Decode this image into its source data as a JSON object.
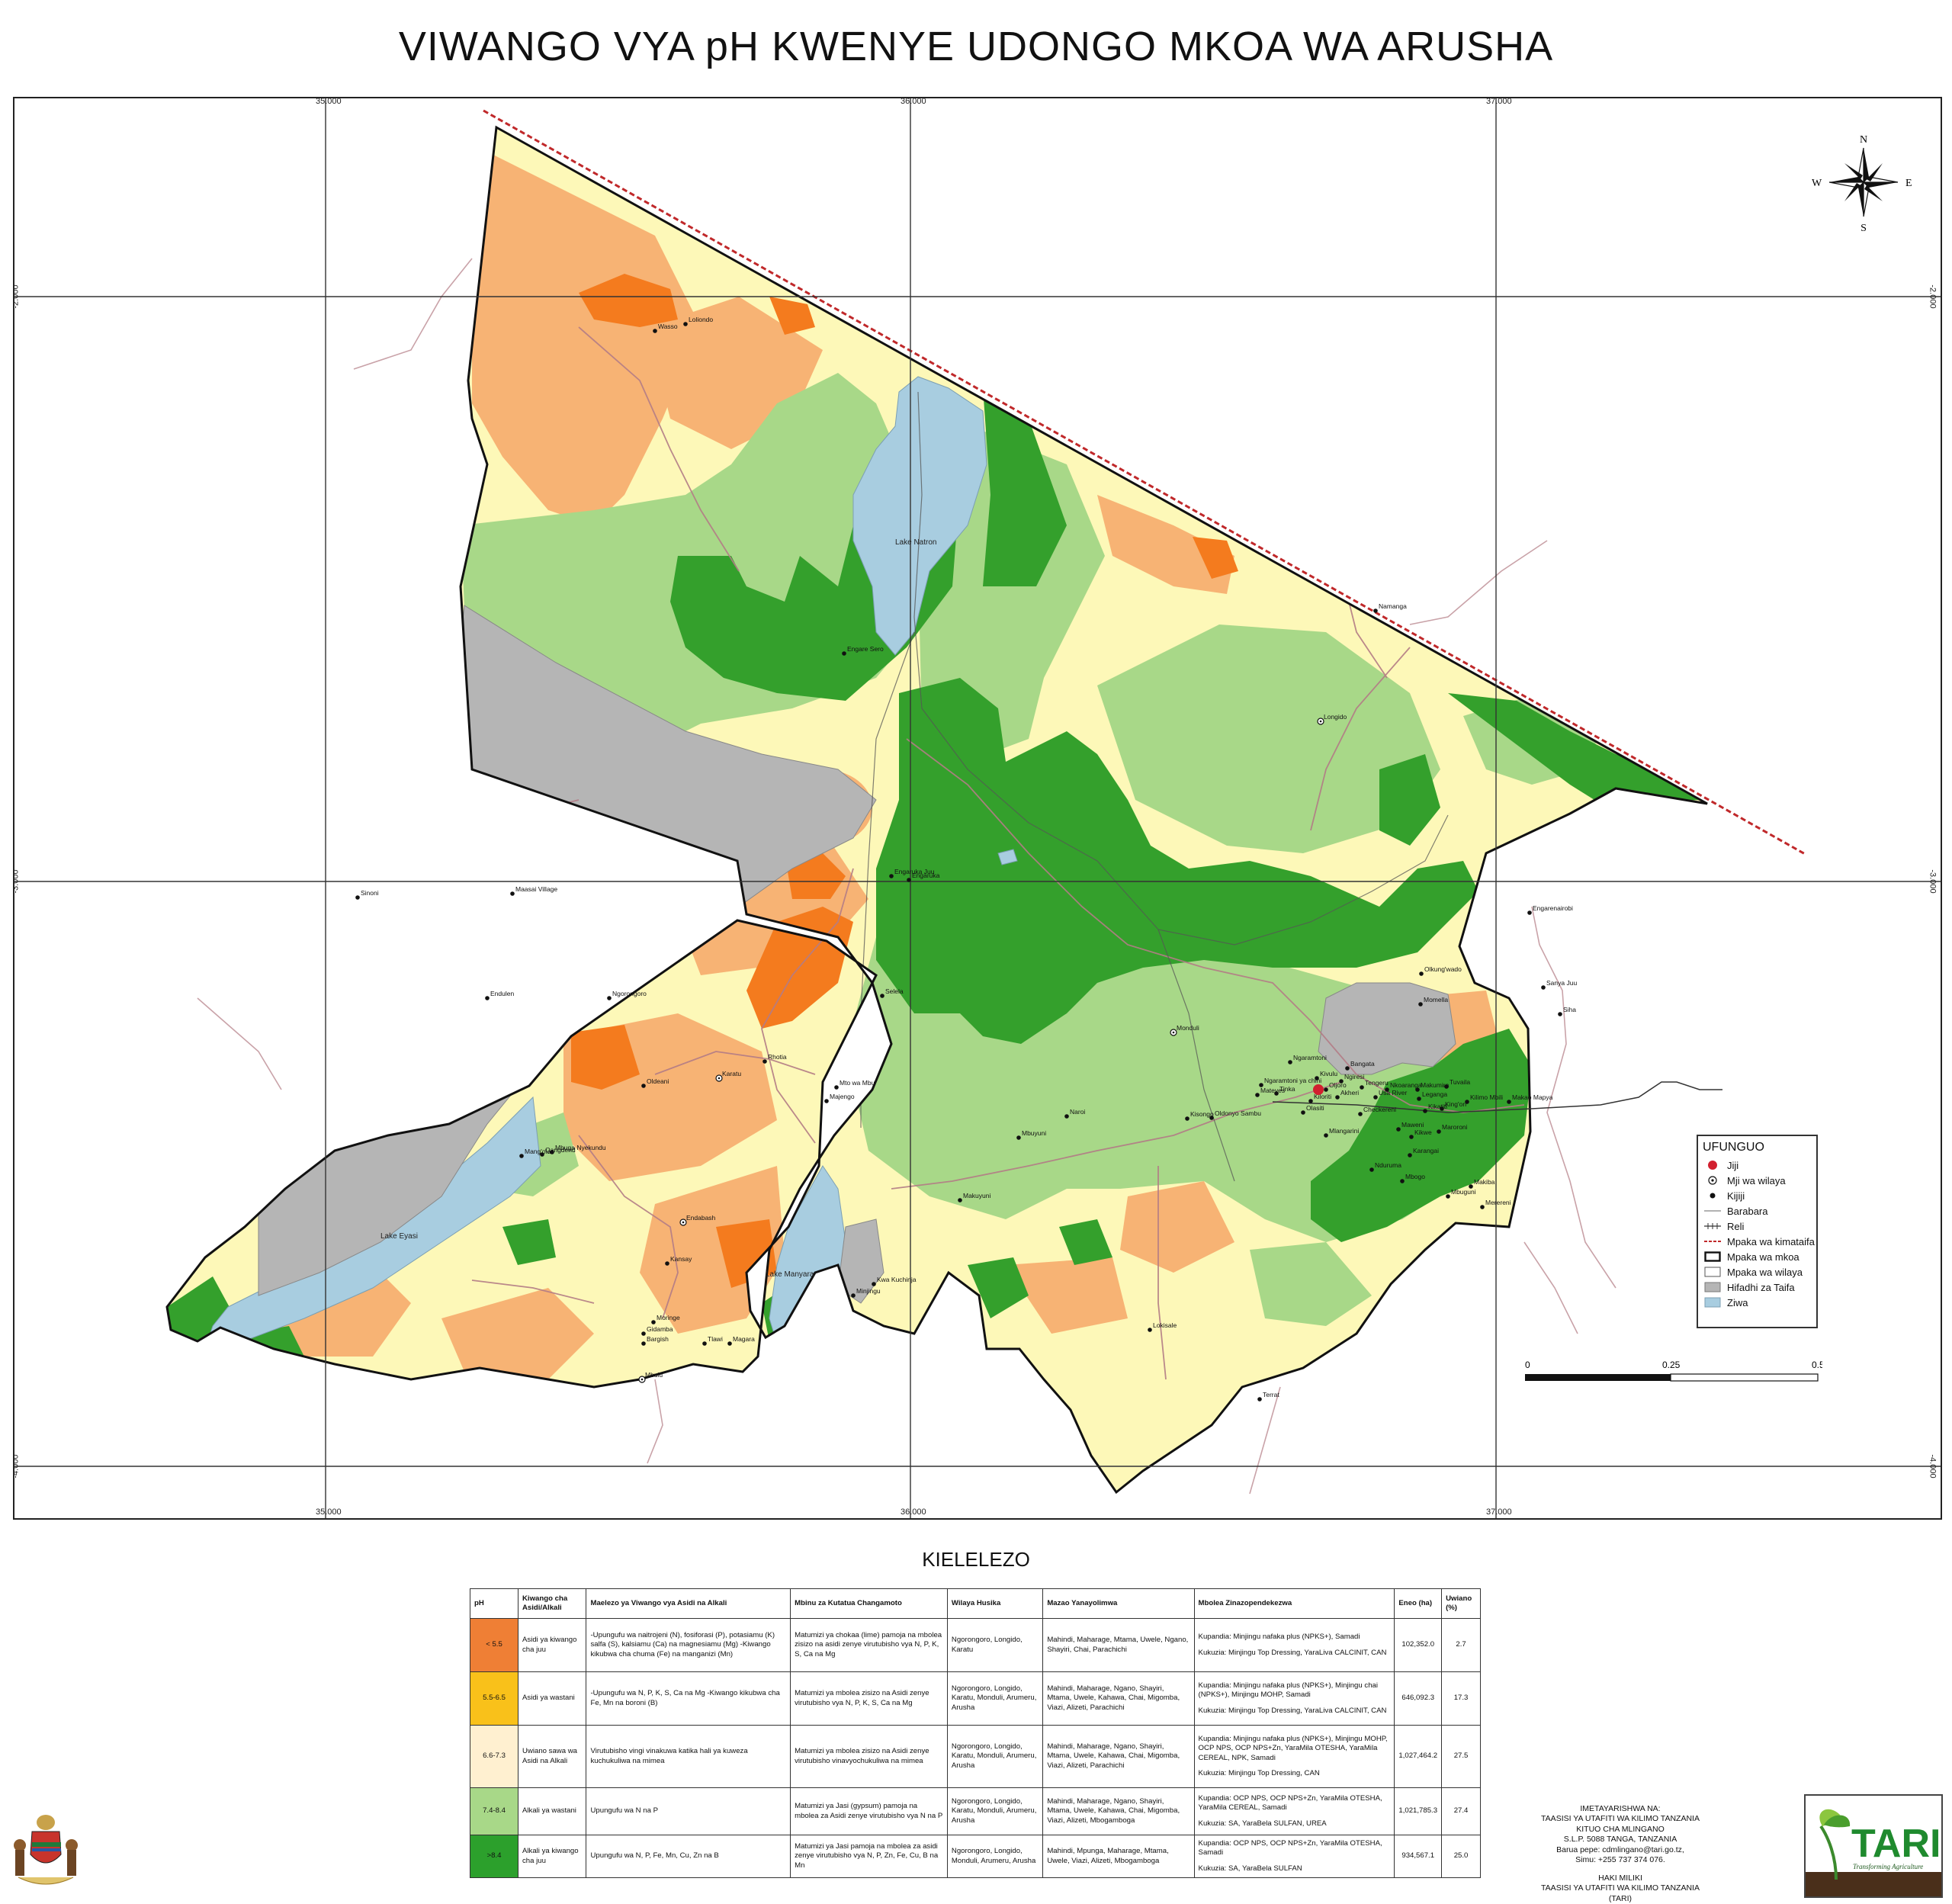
{
  "title": "VIWANGO VYA pH KWENYE UDONGO MKOA WA ARUSHA",
  "grid": {
    "longitudes": [
      "35.000",
      "36.000",
      "37.000"
    ],
    "latitudes": [
      "-2.000",
      "-3.000",
      "-4.000"
    ]
  },
  "places": {
    "lakes": [
      "Lake Natron",
      "Lake Eyasi",
      "Lake Manyara"
    ],
    "towns": [
      "Wasso",
      "Loliondo",
      "Engare Sero",
      "Engaruka Juu",
      "Engaruka",
      "Sinoni",
      "Maasai Village",
      "Endulen",
      "Ngorongoro",
      "Selela",
      "Rhotia",
      "Karatu",
      "Oldeani",
      "Mto wa Mbu",
      "Majengo",
      "Mang'ola",
      "Mbuga Nyekundu",
      "Endabash",
      "Kansay",
      "Qangdend",
      "Moringe",
      "Gidamba",
      "Bargish",
      "Tlawi",
      "Magara",
      "Mbulu",
      "Kwa Kuchinja",
      "Minjingu",
      "Mbuyuni",
      "Naroi",
      "Makuyuni",
      "Monduli",
      "Longido",
      "Namanga",
      "Lokisale",
      "Terrat",
      "Engarenairobi",
      "Sanya Juu",
      "Siha",
      "Olkung'wado",
      "Momella",
      "Ngaramtoni",
      "Ngaramtoni ya chini",
      "Kisongo",
      "Oldonyo Sambu",
      "Mateves",
      "Tinka",
      "Oljoro",
      "Kiloriti",
      "Olasiti",
      "Leganga",
      "Usa River",
      "Tengeru",
      "Kivulu",
      "Mlangarini",
      "Maweni",
      "Karangai",
      "Nduruma",
      "Mbogo",
      "Makiba",
      "Mbuguni",
      "Merereni",
      "Maroroni",
      "Kikwe",
      "Kikatiti",
      "King'ori",
      "Tuvaila",
      "Ngiresi",
      "Bangata",
      "Akheri",
      "Nkoaranga",
      "Makumira",
      "Checkereni",
      "Kilimo Mbili",
      "Makao Mapya",
      "Arusha"
    ],
    "capital": "Arusha"
  },
  "north_arrow": {
    "n": "N",
    "s": "S",
    "e": "E",
    "w": "W"
  },
  "key": {
    "heading": "UFUNGUO",
    "items": [
      {
        "label": "Jiji",
        "symbol": "red-dot"
      },
      {
        "label": "Mji wa wilaya",
        "symbol": "ring-dot"
      },
      {
        "label": "Kijiji",
        "symbol": "black-dot"
      },
      {
        "label": "Barabara",
        "symbol": "road-line"
      },
      {
        "label": "Reli",
        "symbol": "rail-line"
      },
      {
        "label": "Mpaka wa kimataifa",
        "symbol": "dashed-red"
      },
      {
        "label": "Mpaka wa mkoa",
        "symbol": "thick-box"
      },
      {
        "label": "Mpaka wa wilaya",
        "symbol": "thin-box"
      },
      {
        "label": "Hifadhi za Taifa",
        "symbol": "grey-box"
      },
      {
        "label": "Ziwa",
        "symbol": "blue-box"
      }
    ]
  },
  "scale_bar": {
    "labels": [
      "0",
      "0.25",
      "0.5 m"
    ]
  },
  "legend": {
    "heading": "KIELELEZO",
    "columns": [
      "pH",
      "Kiwango cha Asidi/Alkali",
      "Maelezo ya Viwango vya Asidi na Alkali",
      "Mbinu za Kutatua Changamoto",
      "Wilaya Husika",
      "Mazao Yanayolimwa",
      "Mbolea Zinazopendekezwa",
      "Eneo (ha)",
      "Uwiano (%)"
    ],
    "rows": [
      {
        "ph": "< 5.5",
        "level": "Asidi ya kiwango cha juu",
        "description": "-Upungufu wa naitrojeni (N), fosiforasi (P), potasiamu (K) salfa (S), kalsiamu (Ca) na magnesiamu (Mg) -Kiwango kikubwa cha chuma (Fe) na manganizi (Mn)",
        "methods": "Matumizi ya chokaa (lime) pamoja na mbolea zisizo na asidi zenye virutubisho vya N, P, K, S, Ca na Mg",
        "districts": "Ngorongoro, Longido, Karatu",
        "crops": "Mahindi, Maharage, Mtama, Uwele, Ngano, Shayiri, Chai, Parachichi",
        "fertilizer_planting": "Kupandia: Minjingu nafaka plus (NPKS+), Samadi",
        "fertilizer_topdress": "Kukuzia: Minjingu Top Dressing, YaraLiva CALCINIT, CAN",
        "area": "102,352.0",
        "percent": "2.7",
        "color": "#ef7f35"
      },
      {
        "ph": "5.5-6.5",
        "level": "Asidi ya wastani",
        "description": "-Upungufu wa N, P, K, S, Ca na Mg -Kiwango kikubwa cha Fe, Mn na boroni (B)",
        "methods": "Matumizi ya mbolea zisizo na Asidi zenye virutubisho vya N, P, K, S, Ca na Mg",
        "districts": "Ngorongoro, Longido, Karatu, Monduli, Arumeru, Arusha",
        "crops": "Mahindi, Maharage, Ngano, Shayiri, Mtama, Uwele, Kahawa, Chai, Migomba, Viazi, Alizeti, Parachichi",
        "fertilizer_planting": "Kupandia: Minjingu nafaka plus (NPKS+), Minjingu chai (NPKS+), Minjingu MOHP, Samadi",
        "fertilizer_topdress": "Kukuzia: Minjingu Top Dressing, YaraLiva CALCINIT, CAN",
        "area": "646,092.3",
        "percent": "17.3",
        "color": "#f9c11a"
      },
      {
        "ph": "6.6-7.3",
        "level": "Uwiano sawa wa Asidi na Alkali",
        "description": "Virutubisho vingi vinakuwa katika hali ya kuweza kuchukuliwa na mimea",
        "methods": "Matumizi ya mbolea zisizo na Asidi zenye virutubisho vinavyochukuliwa na mimea",
        "districts": "Ngorongoro, Longido, Karatu, Monduli, Arumeru, Arusha",
        "crops": "Mahindi, Maharage, Ngano, Shayiri, Mtama, Uwele, Kahawa, Chai, Migomba, Viazi, Alizeti, Parachichi",
        "fertilizer_planting": "Kupandia: Minjingu nafaka plus (NPKS+), Minjingu MOHP, OCP NPS, OCP NPS+Zn, YaraMila OTESHA, YaraMila CEREAL, NPK, Samadi",
        "fertilizer_topdress": "Kukuzia: Minjingu Top Dressing, CAN",
        "area": "1,027,464.2",
        "percent": "27.5",
        "color": "#fff0d0"
      },
      {
        "ph": "7.4-8.4",
        "level": "Alkali ya wastani",
        "description": "Upungufu wa N na P",
        "methods": "Matumizi ya Jasi (gypsum) pamoja na mbolea za Asidi zenye virutubisho vya N na P",
        "districts": "Ngorongoro, Longido, Karatu, Monduli, Arumeru, Arusha",
        "crops": "Mahindi, Maharage, Ngano, Shayiri, Mtama, Uwele, Kahawa, Chai, Migomba, Viazi, Alizeti, Mbogamboga",
        "fertilizer_planting": "Kupandia: OCP NPS, OCP NPS+Zn, YaraMila OTESHA, YaraMila CEREAL, Samadi",
        "fertilizer_topdress": "Kukuzia: SA, YaraBela SULFAN, UREA",
        "area": "1,021,785.3",
        "percent": "27.4",
        "color": "#a8d888"
      },
      {
        "ph": ">8.4",
        "level": "Alkali ya kiwango cha juu",
        "description": "Upungufu wa N, P, Fe, Mn, Cu, Zn na B",
        "methods": "Matumizi ya Jasi pamoja na mbolea za asidi zenye virutubisho vya N, P, Zn, Fe, Cu, B na Mn",
        "districts": "Ngorongoro, Longido, Monduli, Arumeru, Arusha",
        "crops": "Mahindi, Mpunga, Maharage, Mtama, Uwele, Viazi, Alizeti, Mbogamboga",
        "fertilizer_planting": "Kupandia: OCP NPS, OCP NPS+Zn, YaraMila OTESHA, Samadi",
        "fertilizer_topdress": "Kukuzia: SA, YaraBela SULFAN",
        "area": "934,567.1",
        "percent": "25.0",
        "color": "#2ca02c"
      }
    ]
  },
  "credits": {
    "prepared_by": "IMETAYARISHWA NA:",
    "institute": "TAASISI YA UTAFITI WA KILIMO TANZANIA",
    "centre": "KITUO CHA MLINGANO",
    "address": "S.L.P. 5088 TANGA, TANZANIA",
    "email": "Barua pepe: cdmlingano@tari.go.tz,",
    "phone": "Simu: +255 737 374 076.",
    "copyright": "HAKI MILIKI",
    "copyright_owner": "TAASISI YA UTAFITI WA KILIMO TANZANIA",
    "copyright_abbr": "(TARI)"
  },
  "logo": {
    "text": "TARI",
    "tagline": "Transforming Agriculture"
  },
  "colors": {
    "strong_acid": "#ef7f35",
    "moderate_acid": "#f7b374",
    "neutral": "#fdf8b8",
    "moderate_alkali": "#a8d888",
    "strong_alkali": "#34a02c",
    "park": "#b5b5b5",
    "lake": "#a8cde0",
    "border": "#c0282a"
  }
}
